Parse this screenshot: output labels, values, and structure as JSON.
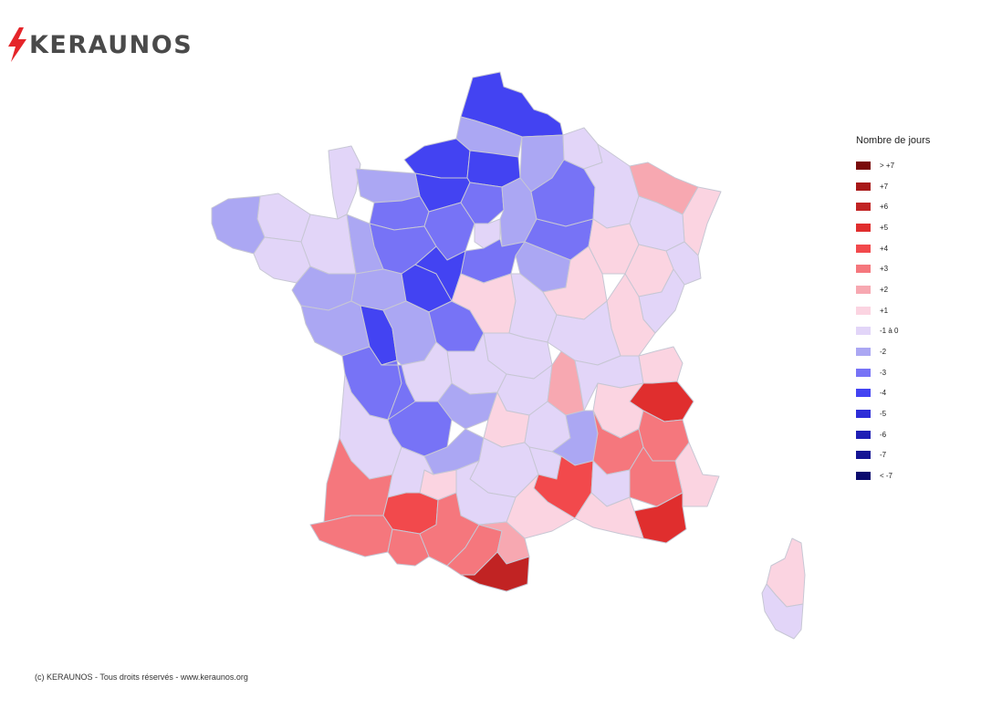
{
  "logo": {
    "text": "KERAUNOS",
    "icon": "lightning-bolt-icon",
    "icon_color": "#e5252a"
  },
  "legend": {
    "title": "Nombre de jours",
    "items": [
      {
        "label": "> +7",
        "color": "#7a0b0b"
      },
      {
        "label": "+7",
        "color": "#a81818"
      },
      {
        "label": "+6",
        "color": "#c12323"
      },
      {
        "label": "+5",
        "color": "#e02e2e"
      },
      {
        "label": "+4",
        "color": "#f2494c"
      },
      {
        "label": "+3",
        "color": "#f5777d"
      },
      {
        "label": "+2",
        "color": "#f7a8b1"
      },
      {
        "label": "+1",
        "color": "#fbd4e1"
      },
      {
        "label": "-1 à 0",
        "color": "#e2d5f8"
      },
      {
        "label": "-2",
        "color": "#aba7f3"
      },
      {
        "label": "-3",
        "color": "#7773f6"
      },
      {
        "label": "-4",
        "color": "#4343f2"
      },
      {
        "label": "-5",
        "color": "#2e2ed8"
      },
      {
        "label": "-6",
        "color": "#1f1fb5"
      },
      {
        "label": "-7",
        "color": "#141494"
      },
      {
        "label": "< -7",
        "color": "#0b0b6e"
      }
    ]
  },
  "map": {
    "level_colors": {
      "m4": "#4343f2",
      "m3": "#7773f6",
      "m2": "#aba7f3",
      "m0": "#e2d5f8",
      "p1": "#fbd4e1",
      "p2": "#f7a8b1",
      "p3": "#f5777d",
      "p4": "#f2494c",
      "p5": "#e02e2e",
      "p6": "#c12323"
    }
  },
  "footer": {
    "text": "(c) KERAUNOS - Tous droits réservés - www.keraunos.org"
  }
}
